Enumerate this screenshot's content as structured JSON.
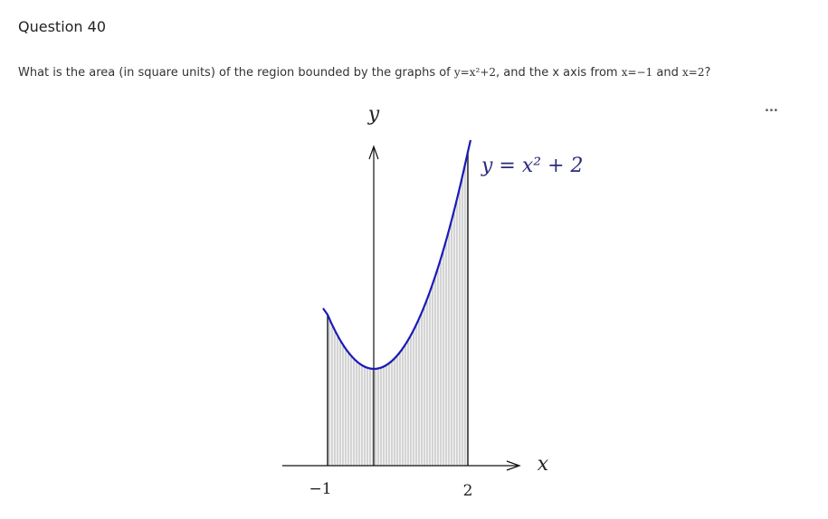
{
  "header": {
    "title": "Question 40"
  },
  "question": {
    "text_before": "What is the area (in square units) of the region bounded by the graphs of",
    "equation": "y=x²+2",
    "text_middle": ", and the x axis from",
    "bound_left": "x=−1",
    "text_and": "and",
    "bound_right": "x=2",
    "text_end": "?"
  },
  "figure": {
    "y_axis_label": "y",
    "x_axis_label": "x",
    "curve_label": "y = x² + 2",
    "tick_left": "−1",
    "tick_right": "2"
  },
  "menu": {
    "label": "..."
  }
}
